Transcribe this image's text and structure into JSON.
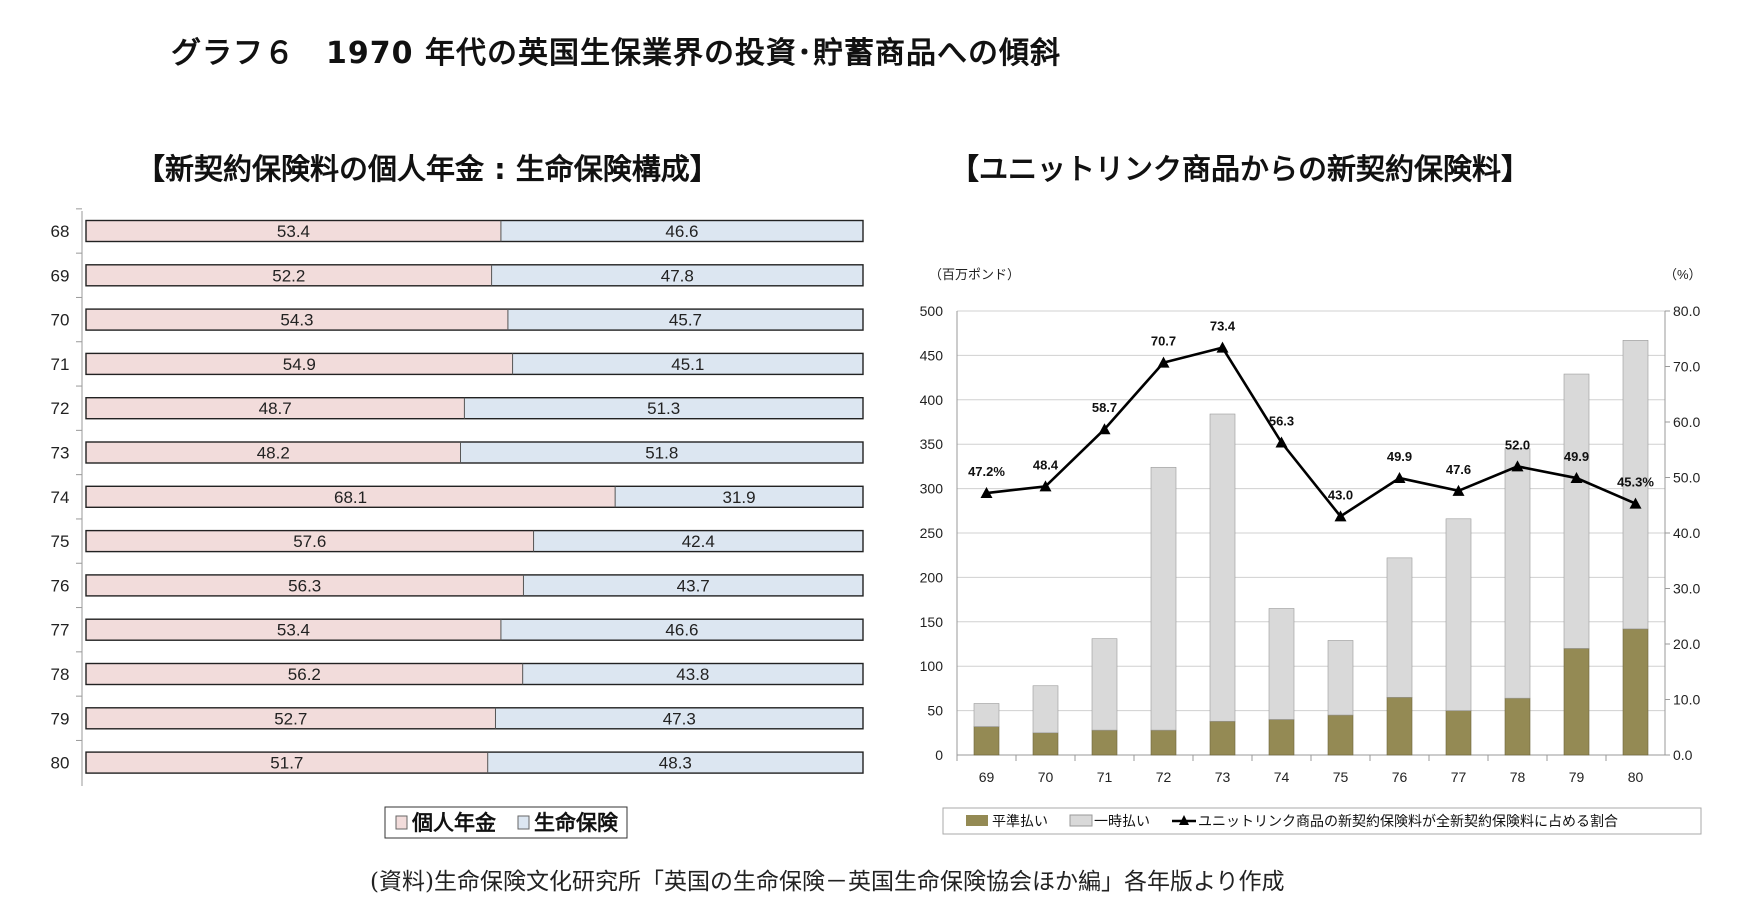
{
  "title": "グラフ６　1970 年代の英国生保業界の投資･貯蓄商品への傾斜",
  "source": "(資料)生命保険文化研究所「英国の生命保険－英国生命保険協会ほか編」各年版より作成",
  "colors": {
    "pension": "#f2dcdb",
    "life": "#dce6f1",
    "level": "#948a54",
    "lump": "#d9d9d9",
    "line": "#000000"
  },
  "chart_data": [
    {
      "type": "bar",
      "orientation": "horizontal-stacked-100",
      "title": "【新契約保険料の個人年金 : 生命保険構成】",
      "categories": [
        "68",
        "69",
        "70",
        "71",
        "72",
        "73",
        "74",
        "75",
        "76",
        "77",
        "78",
        "79",
        "80"
      ],
      "series": [
        {
          "name": "個人年金",
          "values": [
            53.4,
            52.2,
            54.3,
            54.9,
            48.7,
            48.2,
            68.1,
            57.6,
            56.3,
            53.4,
            56.2,
            52.7,
            51.7
          ]
        },
        {
          "name": "生命保険",
          "values": [
            46.6,
            47.8,
            45.7,
            45.1,
            51.3,
            51.8,
            31.9,
            42.4,
            43.7,
            46.6,
            43.8,
            47.3,
            48.3
          ]
        }
      ],
      "legend_position": "bottom",
      "grid": false
    },
    {
      "type": "bar+line",
      "title": "【ユニットリンク商品からの新契約保険料】",
      "y_left_label": "（百万ポンド）",
      "y_right_label": "（%）",
      "y_left_range": [
        0,
        500
      ],
      "y_left_ticks": [
        "0",
        "50",
        "100",
        "150",
        "200",
        "250",
        "300",
        "350",
        "400",
        "450",
        "500"
      ],
      "y_right_range": [
        0,
        80
      ],
      "y_right_ticks": [
        "0.0",
        "10.0",
        "20.0",
        "30.0",
        "40.0",
        "50.0",
        "60.0",
        "70.0",
        "80.0"
      ],
      "categories": [
        "69",
        "70",
        "71",
        "72",
        "73",
        "74",
        "75",
        "76",
        "77",
        "78",
        "79",
        "80"
      ],
      "series": [
        {
          "name": "平準払い",
          "kind": "stacked-bar",
          "axis": "left",
          "values": [
            32,
            25,
            28,
            28,
            38,
            40,
            45,
            65,
            50,
            64,
            120,
            142
          ]
        },
        {
          "name": "一時払い",
          "kind": "stacked-bar",
          "axis": "left",
          "values": [
            26,
            53,
            103,
            296,
            346,
            125,
            84,
            157,
            216,
            281,
            309,
            325
          ]
        },
        {
          "name": "ユニットリンク商品の新契約保険料が全新契約保険料に占める割合",
          "kind": "line",
          "axis": "right",
          "values": [
            47.2,
            48.4,
            58.7,
            70.7,
            73.4,
            56.3,
            43.0,
            49.9,
            47.6,
            52.0,
            49.9,
            45.3
          ],
          "labels": [
            "47.2%",
            "48.4",
            "58.7",
            "70.7",
            "73.4",
            "56.3",
            "43.0",
            "49.9",
            "47.6",
            "52.0",
            "49.9",
            "45.3%"
          ]
        }
      ],
      "grid": true,
      "legend_position": "bottom"
    }
  ]
}
